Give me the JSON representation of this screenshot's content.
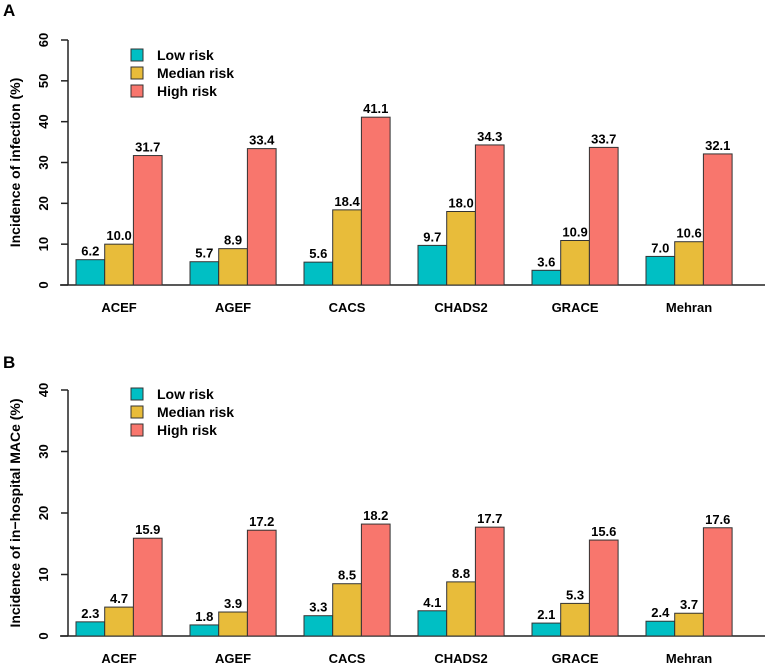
{
  "chart_data": [
    {
      "panel": "A",
      "type": "bar",
      "ylabel": "Incidence of infection (%)",
      "ylim": [
        0,
        60
      ],
      "yticks": [
        0,
        10,
        20,
        30,
        40,
        50,
        60
      ],
      "categories": [
        "ACEF",
        "AGEF",
        "CACS",
        "CHADS2",
        "GRACE",
        "Mehran"
      ],
      "series": [
        {
          "name": "Low risk",
          "color": "#00BFC4",
          "values": [
            6.2,
            5.7,
            5.6,
            9.7,
            3.6,
            7.0
          ]
        },
        {
          "name": "Median risk",
          "color": "#E8BC3A",
          "values": [
            10.0,
            8.9,
            18.4,
            18.0,
            10.9,
            10.6
          ]
        },
        {
          "name": "High risk",
          "color": "#F8766D",
          "values": [
            31.7,
            33.4,
            41.1,
            34.3,
            33.7,
            32.1
          ]
        }
      ],
      "legend": "top-left"
    },
    {
      "panel": "B",
      "type": "bar",
      "ylabel": "Incidence of in−hospital MACe (%)",
      "ylim": [
        0,
        40
      ],
      "yticks": [
        0,
        10,
        20,
        30,
        40
      ],
      "categories": [
        "ACEF",
        "AGEF",
        "CACS",
        "CHADS2",
        "GRACE",
        "Mehran"
      ],
      "series": [
        {
          "name": "Low risk",
          "color": "#00BFC4",
          "values": [
            2.3,
            1.8,
            3.3,
            4.1,
            2.1,
            2.4
          ]
        },
        {
          "name": "Median risk",
          "color": "#E8BC3A",
          "values": [
            4.7,
            3.9,
            8.5,
            8.8,
            5.3,
            3.7
          ]
        },
        {
          "name": "High risk",
          "color": "#F8766D",
          "values": [
            15.9,
            17.2,
            18.2,
            17.7,
            15.6,
            17.6
          ]
        }
      ],
      "legend": "top-left"
    }
  ]
}
